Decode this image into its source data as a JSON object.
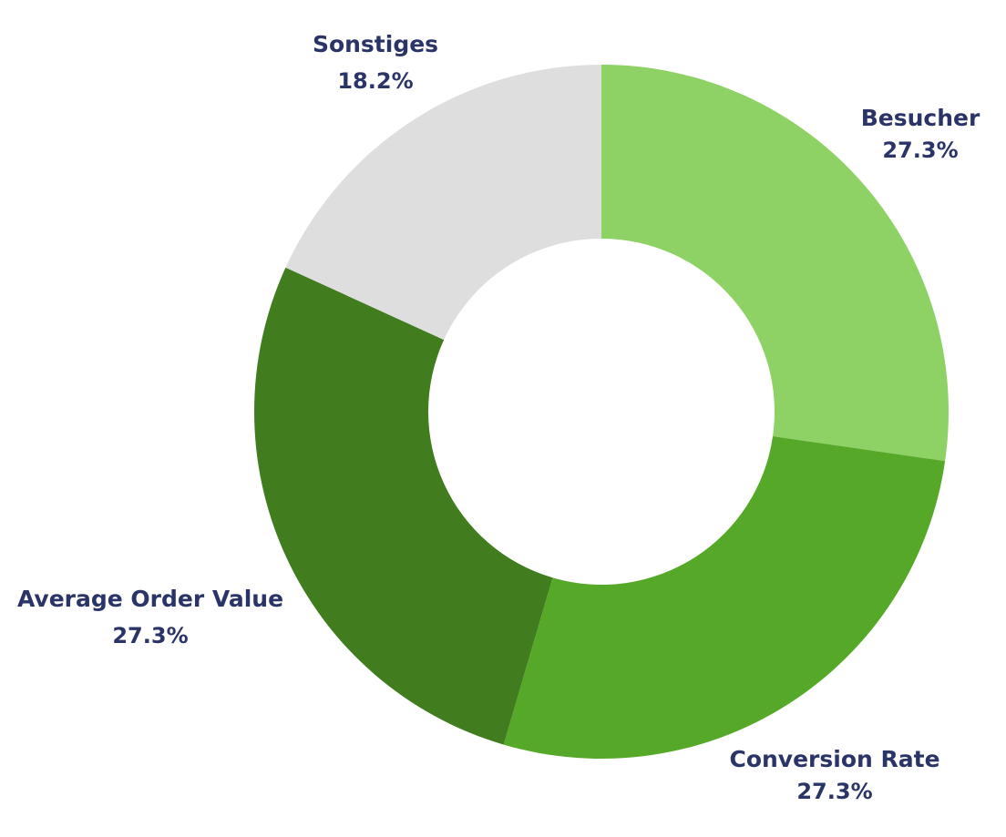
{
  "chart_data": {
    "type": "pie",
    "donut": true,
    "title": "",
    "legend": "none",
    "slices": [
      {
        "label": "Besucher",
        "value": 27.3,
        "value_label": "27.3%",
        "color": "#8ed165"
      },
      {
        "label": "Conversion Rate",
        "value": 27.3,
        "value_label": "27.3%",
        "color": "#56a928"
      },
      {
        "label": "Average Order Value",
        "value": 27.3,
        "value_label": "27.3%",
        "color": "#417c1f"
      },
      {
        "label": "Sonstiges",
        "value": 18.2,
        "value_label": "18.2%",
        "color": "#dedede"
      }
    ]
  }
}
